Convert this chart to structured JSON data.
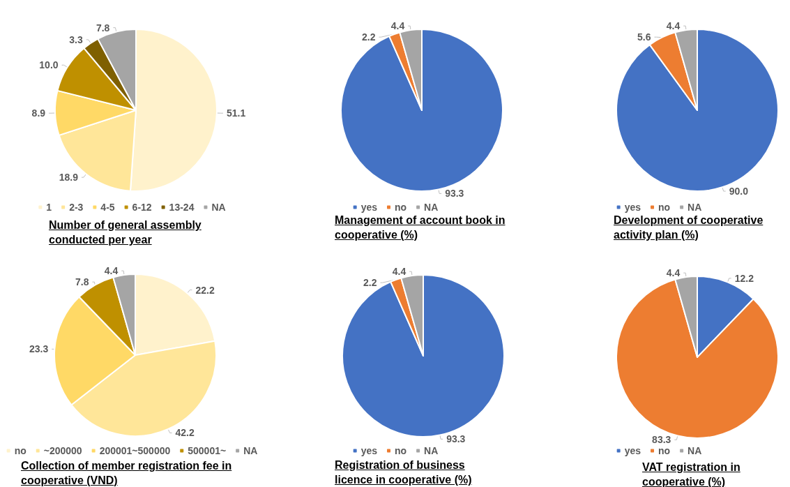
{
  "chart_data": [
    {
      "type": "pie",
      "title": "Number of general assembly conducted per year",
      "categories": [
        "1",
        "2-3",
        "4-5",
        "6-12",
        "13-24",
        "NA"
      ],
      "values": [
        51.1,
        18.9,
        8.9,
        10.0,
        3.3,
        7.8
      ],
      "value_labels": [
        "51.1",
        "18.9",
        "8.9",
        "10.0",
        "3.3",
        "7.8"
      ],
      "colors": [
        "#fff2cc",
        "#ffe699",
        "#ffd966",
        "#bf9000",
        "#7f6000",
        "#a5a5a5"
      ],
      "legend": "bottom"
    },
    {
      "type": "pie",
      "title": "Management of account book in cooperative (%)",
      "categories": [
        "yes",
        "no",
        "NA"
      ],
      "values": [
        93.3,
        2.2,
        4.4
      ],
      "value_labels": [
        "93.3",
        "2.2",
        "4.4"
      ],
      "colors": [
        "#4472c4",
        "#ed7d31",
        "#a5a5a5"
      ],
      "legend": "bottom"
    },
    {
      "type": "pie",
      "title": "Development of cooperative activity plan (%)",
      "categories": [
        "yes",
        "no",
        "NA"
      ],
      "values": [
        90.0,
        5.6,
        4.4
      ],
      "value_labels": [
        "90.0",
        "5.6",
        "4.4"
      ],
      "colors": [
        "#4472c4",
        "#ed7d31",
        "#a5a5a5"
      ],
      "legend": "bottom"
    },
    {
      "type": "pie",
      "title": "Collection of member registration fee in cooperative (VND)",
      "categories": [
        "no",
        "~200000",
        "200001~500000",
        "500001~",
        "NA"
      ],
      "values": [
        22.2,
        42.2,
        23.3,
        7.8,
        4.4
      ],
      "value_labels": [
        "22.2",
        "42.2",
        "23.3",
        "7.8",
        "4.4"
      ],
      "colors": [
        "#fff2cc",
        "#ffe699",
        "#ffd966",
        "#bf9000",
        "#a5a5a5"
      ],
      "legend": "bottom"
    },
    {
      "type": "pie",
      "title": "Registration of business licence in cooperative (%)",
      "categories": [
        "yes",
        "no",
        "NA"
      ],
      "values": [
        93.3,
        2.2,
        4.4
      ],
      "value_labels": [
        "93.3",
        "2.2",
        "4.4"
      ],
      "colors": [
        "#4472c4",
        "#ed7d31",
        "#a5a5a5"
      ],
      "legend": "bottom"
    },
    {
      "type": "pie",
      "title": "VAT registration in cooperative (%)",
      "categories": [
        "yes",
        "no",
        "NA"
      ],
      "values": [
        12.2,
        83.3,
        4.4
      ],
      "value_labels": [
        "12.2",
        "83.3",
        "4.4"
      ],
      "colors": [
        "#4472c4",
        "#ed7d31",
        "#a5a5a5"
      ],
      "legend": "bottom"
    }
  ]
}
